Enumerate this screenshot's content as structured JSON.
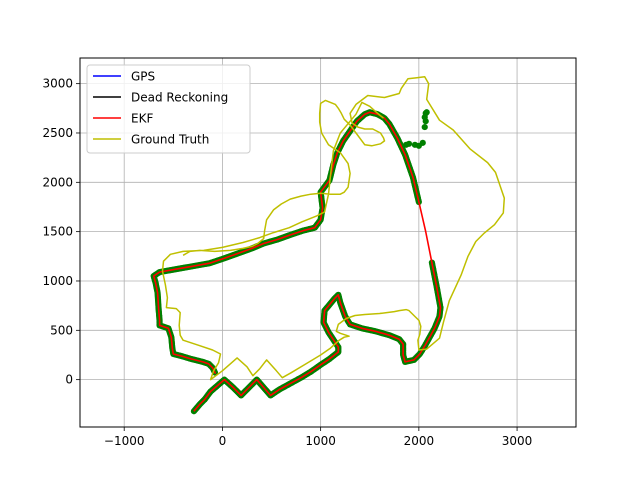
{
  "chart_data": {
    "type": "line",
    "title": "",
    "xlabel": "",
    "ylabel": "",
    "xlim": [
      -1450,
      3600
    ],
    "ylim": [
      -480,
      3260
    ],
    "grid": true,
    "legend_position": "upper-left",
    "x_ticks": [
      {
        "value": -1000,
        "label": "−1000"
      },
      {
        "value": 0,
        "label": "0"
      },
      {
        "value": 1000,
        "label": "1000"
      },
      {
        "value": 2000,
        "label": "2000"
      },
      {
        "value": 3000,
        "label": "3000"
      }
    ],
    "y_ticks": [
      {
        "value": 0,
        "label": "0"
      },
      {
        "value": 500,
        "label": "500"
      },
      {
        "value": 1000,
        "label": "1000"
      },
      {
        "value": 1500,
        "label": "1500"
      },
      {
        "value": 2000,
        "label": "2000"
      },
      {
        "value": 2500,
        "label": "2500"
      },
      {
        "value": 3000,
        "label": "3000"
      }
    ],
    "legend": [
      {
        "label": "GPS",
        "color": "#0000ff"
      },
      {
        "label": "Dead Reckoning",
        "color": "#000000"
      },
      {
        "label": "EKF",
        "color": "#ff0000"
      },
      {
        "label": "Ground Truth",
        "color": "#bfbf00"
      }
    ],
    "gps_color": "#008000",
    "series": [
      {
        "name": "Ground Truth",
        "color": "#bfbf00",
        "points": [
          [
            1640,
            2650
          ],
          [
            1580,
            2700
          ],
          [
            1500,
            2770
          ],
          [
            1420,
            2810
          ],
          [
            1360,
            2690
          ],
          [
            1200,
            2500
          ],
          [
            1130,
            2320
          ],
          [
            1100,
            2070
          ],
          [
            1080,
            1880
          ],
          [
            1040,
            1700
          ],
          [
            960,
            1660
          ],
          [
            810,
            1600
          ],
          [
            680,
            1540
          ],
          [
            520,
            1490
          ],
          [
            380,
            1440
          ],
          [
            210,
            1390
          ],
          [
            0,
            1340
          ],
          [
            -190,
            1310
          ],
          [
            -400,
            1300
          ],
          [
            -530,
            1270
          ],
          [
            -600,
            1200
          ],
          [
            -610,
            1100
          ],
          [
            -580,
            960
          ],
          [
            -560,
            830
          ],
          [
            -570,
            730
          ],
          [
            -470,
            720
          ],
          [
            -430,
            680
          ],
          [
            -440,
            550
          ],
          [
            -430,
            450
          ],
          [
            -400,
            400
          ],
          [
            -250,
            350
          ],
          [
            -100,
            300
          ],
          [
            -20,
            260
          ],
          [
            -40,
            170
          ],
          [
            -90,
            90
          ],
          [
            -120,
            0
          ],
          [
            0,
            90
          ],
          [
            150,
            220
          ],
          [
            250,
            130
          ],
          [
            310,
            40
          ],
          [
            380,
            110
          ],
          [
            450,
            200
          ],
          [
            550,
            90
          ],
          [
            610,
            20
          ],
          [
            700,
            70
          ],
          [
            850,
            160
          ],
          [
            1000,
            250
          ],
          [
            1100,
            320
          ],
          [
            1190,
            400
          ],
          [
            1240,
            430
          ],
          [
            1290,
            440
          ],
          [
            1200,
            470
          ],
          [
            1160,
            490
          ],
          [
            1180,
            560
          ],
          [
            1260,
            620
          ],
          [
            1350,
            650
          ],
          [
            1450,
            660
          ],
          [
            1600,
            670
          ],
          [
            1750,
            690
          ],
          [
            1800,
            700
          ],
          [
            1870,
            710
          ],
          [
            1900,
            700
          ],
          [
            2000,
            600
          ],
          [
            2020,
            540
          ],
          [
            2010,
            460
          ],
          [
            1990,
            400
          ],
          [
            2000,
            300
          ],
          [
            2080,
            310
          ],
          [
            2210,
            420
          ],
          [
            2250,
            580
          ],
          [
            2310,
            800
          ],
          [
            2430,
            1060
          ],
          [
            2500,
            1250
          ],
          [
            2580,
            1400
          ],
          [
            2660,
            1480
          ],
          [
            2770,
            1570
          ],
          [
            2860,
            1690
          ],
          [
            2870,
            1840
          ],
          [
            2780,
            2100
          ],
          [
            2700,
            2200
          ],
          [
            2520,
            2340
          ],
          [
            2350,
            2530
          ],
          [
            2210,
            2630
          ],
          [
            2080,
            2840
          ],
          [
            2100,
            3000
          ],
          [
            2060,
            3070
          ],
          [
            1980,
            3060
          ],
          [
            1890,
            3050
          ],
          [
            1820,
            2950
          ],
          [
            1800,
            2900
          ],
          [
            1650,
            2860
          ],
          [
            1480,
            2880
          ],
          [
            1360,
            2790
          ],
          [
            1300,
            2700
          ],
          [
            1320,
            2600
          ],
          [
            1380,
            2560
          ],
          [
            1450,
            2540
          ],
          [
            1530,
            2540
          ],
          [
            1610,
            2500
          ],
          [
            1640,
            2450
          ],
          [
            1650,
            2420
          ],
          [
            1610,
            2390
          ],
          [
            1520,
            2370
          ],
          [
            1450,
            2380
          ],
          [
            1360,
            2500
          ],
          [
            1300,
            2580
          ],
          [
            1240,
            2640
          ],
          [
            1210,
            2700
          ],
          [
            1180,
            2750
          ],
          [
            1150,
            2790
          ],
          [
            1050,
            2830
          ],
          [
            1000,
            2800
          ],
          [
            990,
            2700
          ],
          [
            990,
            2610
          ],
          [
            1010,
            2500
          ],
          [
            1080,
            2380
          ],
          [
            1200,
            2300
          ],
          [
            1280,
            2190
          ],
          [
            1300,
            2090
          ],
          [
            1280,
            1950
          ],
          [
            1240,
            1900
          ],
          [
            1200,
            1880
          ],
          [
            1100,
            1880
          ],
          [
            1000,
            1890
          ],
          [
            900,
            1880
          ],
          [
            800,
            1860
          ],
          [
            690,
            1830
          ],
          [
            600,
            1780
          ],
          [
            520,
            1720
          ],
          [
            450,
            1620
          ],
          [
            430,
            1510
          ],
          [
            420,
            1430
          ],
          [
            360,
            1380
          ],
          [
            300,
            1350
          ],
          [
            210,
            1330
          ],
          [
            80,
            1310
          ],
          [
            -80,
            1300
          ],
          [
            -230,
            1310
          ],
          [
            -330,
            1300
          ],
          [
            -400,
            1260
          ]
        ]
      },
      {
        "name": "EKF",
        "color": "#ff0000",
        "points": [
          [
            -290,
            -320
          ],
          [
            -230,
            -250
          ],
          [
            -180,
            -200
          ],
          [
            -120,
            -120
          ],
          [
            -50,
            -60
          ],
          [
            20,
            0
          ],
          [
            110,
            -80
          ],
          [
            190,
            -160
          ],
          [
            270,
            -80
          ],
          [
            350,
            0
          ],
          [
            420,
            -80
          ],
          [
            490,
            -160
          ],
          [
            580,
            -100
          ],
          [
            690,
            -40
          ],
          [
            800,
            20
          ],
          [
            900,
            80
          ],
          [
            1000,
            150
          ],
          [
            1090,
            210
          ],
          [
            1180,
            280
          ],
          [
            1180,
            330
          ],
          [
            1140,
            390
          ],
          [
            1080,
            480
          ],
          [
            1030,
            580
          ],
          [
            1040,
            700
          ],
          [
            1090,
            760
          ],
          [
            1140,
            820
          ],
          [
            1180,
            860
          ],
          [
            1200,
            780
          ],
          [
            1250,
            640
          ],
          [
            1300,
            560
          ],
          [
            1420,
            520
          ],
          [
            1560,
            490
          ],
          [
            1700,
            450
          ],
          [
            1800,
            410
          ],
          [
            1840,
            360
          ],
          [
            1840,
            250
          ],
          [
            1860,
            180
          ],
          [
            1950,
            200
          ],
          [
            2010,
            260
          ],
          [
            2060,
            340
          ],
          [
            2110,
            430
          ],
          [
            2160,
            520
          ],
          [
            2210,
            640
          ],
          [
            2220,
            730
          ],
          [
            2180,
            950
          ],
          [
            2130,
            1200
          ],
          [
            2070,
            1500
          ],
          [
            2000,
            1800
          ],
          [
            1940,
            2050
          ],
          [
            1860,
            2280
          ],
          [
            1780,
            2450
          ],
          [
            1700,
            2590
          ],
          [
            1650,
            2650
          ],
          [
            1580,
            2690
          ],
          [
            1500,
            2710
          ],
          [
            1450,
            2690
          ],
          [
            1370,
            2620
          ],
          [
            1300,
            2520
          ],
          [
            1230,
            2420
          ],
          [
            1170,
            2300
          ],
          [
            1130,
            2180
          ],
          [
            1110,
            2100
          ],
          [
            1090,
            2020
          ],
          [
            1000,
            1900
          ],
          [
            1020,
            1740
          ],
          [
            1000,
            1620
          ],
          [
            940,
            1540
          ],
          [
            820,
            1510
          ],
          [
            700,
            1470
          ],
          [
            560,
            1420
          ],
          [
            420,
            1380
          ],
          [
            300,
            1330
          ],
          [
            160,
            1280
          ],
          [
            20,
            1230
          ],
          [
            -130,
            1180
          ],
          [
            -300,
            1150
          ],
          [
            -470,
            1120
          ],
          [
            -640,
            1090
          ],
          [
            -700,
            1050
          ],
          [
            -680,
            980
          ],
          [
            -660,
            880
          ],
          [
            -650,
            720
          ],
          [
            -640,
            600
          ],
          [
            -640,
            550
          ],
          [
            -550,
            520
          ],
          [
            -520,
            430
          ],
          [
            -510,
            320
          ],
          [
            -500,
            260
          ],
          [
            -420,
            240
          ],
          [
            -320,
            210
          ],
          [
            -200,
            180
          ],
          [
            -140,
            160
          ],
          [
            -100,
            120
          ],
          [
            -70,
            60
          ]
        ]
      },
      {
        "name": "GPS",
        "color": "#0000ff",
        "points": []
      },
      {
        "name": "Dead Reckoning",
        "color": "#000000",
        "points": []
      }
    ],
    "gps_extra": [
      [
        1870,
        2380
      ],
      [
        1900,
        2390
      ],
      [
        1960,
        2380
      ],
      [
        2000,
        2370
      ],
      [
        2040,
        2400
      ],
      [
        2060,
        2560
      ],
      [
        2070,
        2620
      ],
      [
        2060,
        2660
      ],
      [
        2070,
        2700
      ],
      [
        2080,
        2710
      ]
    ]
  }
}
